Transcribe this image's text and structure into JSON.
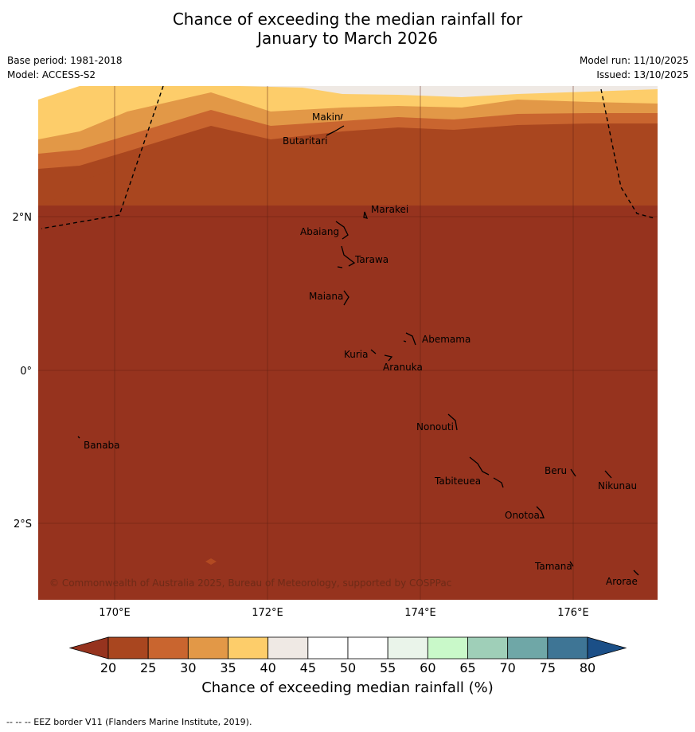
{
  "title_line1": "Chance of exceeding the median rainfall for",
  "title_line2": "January to March 2026",
  "base_period": "Base period: 1981-2018",
  "model": "Model: ACCESS-S2",
  "model_run": "Model run: 11/10/2025",
  "issued": "Issued: 13/10/2025",
  "axes": {
    "lon_ticks": [
      "170°E",
      "172°E",
      "174°E",
      "176°E"
    ],
    "lat_ticks": [
      "2°N",
      "0°",
      "2°S"
    ]
  },
  "places": [
    {
      "name": "Makin"
    },
    {
      "name": "Butaritari"
    },
    {
      "name": "Marakei"
    },
    {
      "name": "Abaiang"
    },
    {
      "name": "Tarawa"
    },
    {
      "name": "Maiana"
    },
    {
      "name": "Abemama"
    },
    {
      "name": "Kuria"
    },
    {
      "name": "Aranuka"
    },
    {
      "name": "Nonouti"
    },
    {
      "name": "Banaba"
    },
    {
      "name": "Beru"
    },
    {
      "name": "Nikunau"
    },
    {
      "name": "Tabiteuea"
    },
    {
      "name": "Onotoa"
    },
    {
      "name": "Tamana"
    },
    {
      "name": "Arorae"
    }
  ],
  "copyright": "© Commonwealth of Australia 2025, Bureau of Meteorology, supported by COSPPac",
  "colorbar": {
    "ticks": [
      "20",
      "25",
      "30",
      "35",
      "40",
      "45",
      "50",
      "55",
      "60",
      "65",
      "70",
      "75",
      "80"
    ],
    "under_color": "#96331e",
    "over_color": "#1b4f87",
    "colors": [
      "#a9461f",
      "#c9652f",
      "#e29847",
      "#fdcd6a",
      "#efe9e4",
      "#ffffff",
      "#ffffff",
      "#eaf4ea",
      "#c9f9c9",
      "#9fcfb8",
      "#6fa7a7",
      "#3e7595"
    ],
    "label": "Chance of exceeding median rainfall (%)"
  },
  "footnote": "--  --  -- EEZ border V11 (Flanders Marine Institute, 2019)."
}
